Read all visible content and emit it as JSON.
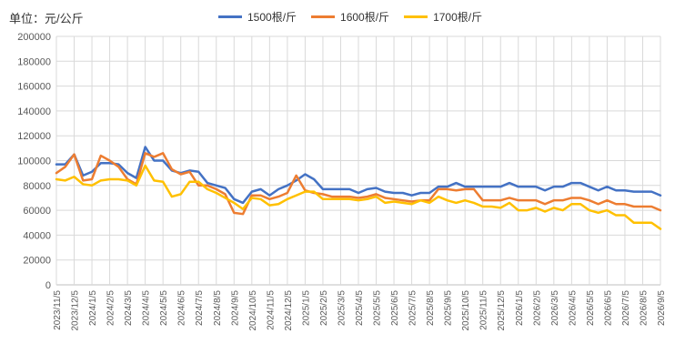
{
  "unit_label": "单位：元/公斤",
  "colors": {
    "s1500": "#4472C4",
    "s1600": "#ED7D31",
    "s1700": "#FFC000",
    "grid": "#d9d9d9"
  },
  "chart_data": {
    "type": "line",
    "title": "",
    "xlabel": "",
    "ylabel": "",
    "ylim": [
      0,
      200000
    ],
    "yticks": [
      0,
      20000,
      40000,
      60000,
      80000,
      100000,
      120000,
      140000,
      160000,
      180000,
      200000
    ],
    "grid": true,
    "legend_position": "top",
    "categories": [
      "2023/11/5",
      "2023/11/20",
      "2023/12/5",
      "2023/12/20",
      "2024/1/5",
      "2024/1/20",
      "2024/2/5",
      "2024/2/20",
      "2024/3/5",
      "2024/3/20",
      "2024/4/5",
      "2024/4/20",
      "2024/5/5",
      "2024/5/20",
      "2024/6/5",
      "2024/6/20",
      "2024/7/5",
      "2024/7/20",
      "2024/8/5",
      "2024/8/20",
      "2024/9/5",
      "2024/9/20",
      "2024/10/5",
      "2024/10/20",
      "2024/11/5",
      "2024/11/20",
      "2024/12/5",
      "2024/12/20",
      "2025/1/5",
      "2025/1/20",
      "2025/2/5",
      "2025/2/20",
      "2025/3/5",
      "2025/3/20",
      "2025/4/5",
      "2025/4/20",
      "2025/5/5",
      "2025/5/20",
      "2025/6/5",
      "2025/6/20",
      "2025/7/5",
      "2025/7/20",
      "2025/8/5",
      "2025/8/20",
      "2025/9/5",
      "2025/9/20",
      "2025/10/5",
      "2025/10/20",
      "2025/11/5",
      "2025/11/20",
      "2025/12/5",
      "2025/12/20",
      "2026/1/5",
      "2026/1/20",
      "2026/2/5",
      "2026/2/20",
      "2026/3/5",
      "2026/3/20",
      "2026/4/5",
      "2026/4/20",
      "2026/5/5",
      "2026/5/20",
      "2026/6/5",
      "2026/6/20",
      "2026/7/5",
      "2026/7/20",
      "2026/8/5",
      "2026/8/20",
      "2026/9/5"
    ],
    "x_tick_labels": [
      "2023/11/5",
      "2023/12/5",
      "2024/1/5",
      "2024/2/5",
      "2024/3/5",
      "2024/4/5",
      "2024/5/5",
      "2024/6/5",
      "2024/7/5",
      "2024/8/5",
      "2024/9/5",
      "2024/10/5",
      "2024/11/5",
      "2024/12/5",
      "2025/1/5",
      "2025/2/5",
      "2025/3/5",
      "2025/4/5",
      "2025/5/5",
      "2025/6/5",
      "2025/7/5",
      "2025/8/5",
      "2025/9/5",
      "2025/10/5",
      "2025/11/5",
      "2025/12/5",
      "2026/1/5",
      "2026/2/5",
      "2026/3/5",
      "2026/4/5",
      "2026/5/5",
      "2026/6/5",
      "2026/7/5",
      "2026/8/5",
      "2026/9/5"
    ],
    "series": [
      {
        "name": "1500根/斤",
        "color": "#4472C4",
        "values": [
          97000,
          97000,
          105000,
          88000,
          91000,
          98000,
          98000,
          97000,
          90000,
          86000,
          111000,
          100000,
          100000,
          92000,
          90000,
          92000,
          91000,
          82000,
          80000,
          78000,
          69000,
          66000,
          75000,
          77000,
          72000,
          77000,
          80000,
          84000,
          89000,
          85000,
          77000,
          77000,
          77000,
          77000,
          74000,
          77000,
          78000,
          75000,
          74000,
          74000,
          72000,
          74000,
          74000,
          79000,
          79000,
          82000,
          79000,
          79000,
          79000,
          79000,
          79000,
          82000,
          79000,
          79000,
          79000,
          76000,
          79000,
          79000,
          82000,
          82000,
          79000,
          76000,
          79000,
          76000,
          76000,
          75000,
          75000,
          75000,
          72000
        ]
      },
      {
        "name": "1600根/斤",
        "color": "#ED7D31",
        "values": [
          90000,
          95000,
          105000,
          84000,
          85000,
          104000,
          100000,
          95000,
          85000,
          81000,
          106000,
          103000,
          106000,
          93000,
          89000,
          91000,
          80000,
          80000,
          77000,
          73000,
          58000,
          57000,
          72000,
          72000,
          69000,
          71000,
          74000,
          88000,
          76000,
          74000,
          73000,
          71000,
          71000,
          71000,
          70000,
          71000,
          73000,
          70000,
          69000,
          68000,
          67000,
          68000,
          68000,
          77000,
          77000,
          76000,
          77000,
          77000,
          68000,
          68000,
          68000,
          70000,
          68000,
          68000,
          68000,
          65000,
          68000,
          68000,
          70000,
          70000,
          68000,
          65000,
          68000,
          65000,
          65000,
          63000,
          63000,
          63000,
          60000
        ]
      },
      {
        "name": "1700根/斤",
        "color": "#FFC000",
        "values": [
          85000,
          84000,
          87000,
          81000,
          80000,
          84000,
          85000,
          85000,
          84000,
          80000,
          96000,
          84000,
          83000,
          71000,
          73000,
          83000,
          83000,
          77000,
          74000,
          70000,
          66000,
          61000,
          70000,
          69000,
          64000,
          65000,
          69000,
          72000,
          75000,
          75000,
          69000,
          69000,
          69000,
          69000,
          68000,
          69000,
          71000,
          66000,
          67000,
          66000,
          65000,
          68000,
          66000,
          71000,
          68000,
          66000,
          68000,
          66000,
          63000,
          63000,
          62000,
          66000,
          60000,
          60000,
          62000,
          59000,
          62000,
          60000,
          65000,
          65000,
          60000,
          58000,
          60000,
          56000,
          56000,
          50000,
          50000,
          50000,
          45000
        ]
      }
    ]
  }
}
